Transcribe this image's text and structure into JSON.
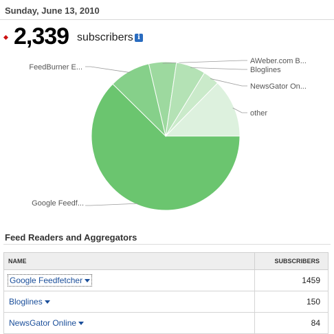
{
  "header": {
    "date": "Sunday, June 13, 2010"
  },
  "summary": {
    "count": "2,339",
    "label": "subscribers",
    "info_icon": "info-icon"
  },
  "chart_data": {
    "type": "pie",
    "slices": [
      {
        "label": "Google Feedf...",
        "value": 1459,
        "color": "#6bc56f"
      },
      {
        "label": "FeedBurner E...",
        "value": 210,
        "color": "#86d08a"
      },
      {
        "label": "AWeber.com B...",
        "value": 140,
        "color": "#9dd99f"
      },
      {
        "label": "Bloglines",
        "value": 150,
        "color": "#b4e2b5"
      },
      {
        "label": "NewsGator On...",
        "value": 84,
        "color": "#caeaca"
      },
      {
        "label": "other",
        "value": 296,
        "color": "#ddf1de"
      }
    ]
  },
  "section": {
    "title": "Feed Readers and Aggregators"
  },
  "table": {
    "headers": {
      "name": "NAME",
      "subscribers": "SUBSCRIBERS"
    },
    "rows": [
      {
        "name": "Google Feedfetcher",
        "subscribers": "1459"
      },
      {
        "name": "Bloglines",
        "subscribers": "150"
      },
      {
        "name": "NewsGator Online",
        "subscribers": "84"
      }
    ]
  }
}
